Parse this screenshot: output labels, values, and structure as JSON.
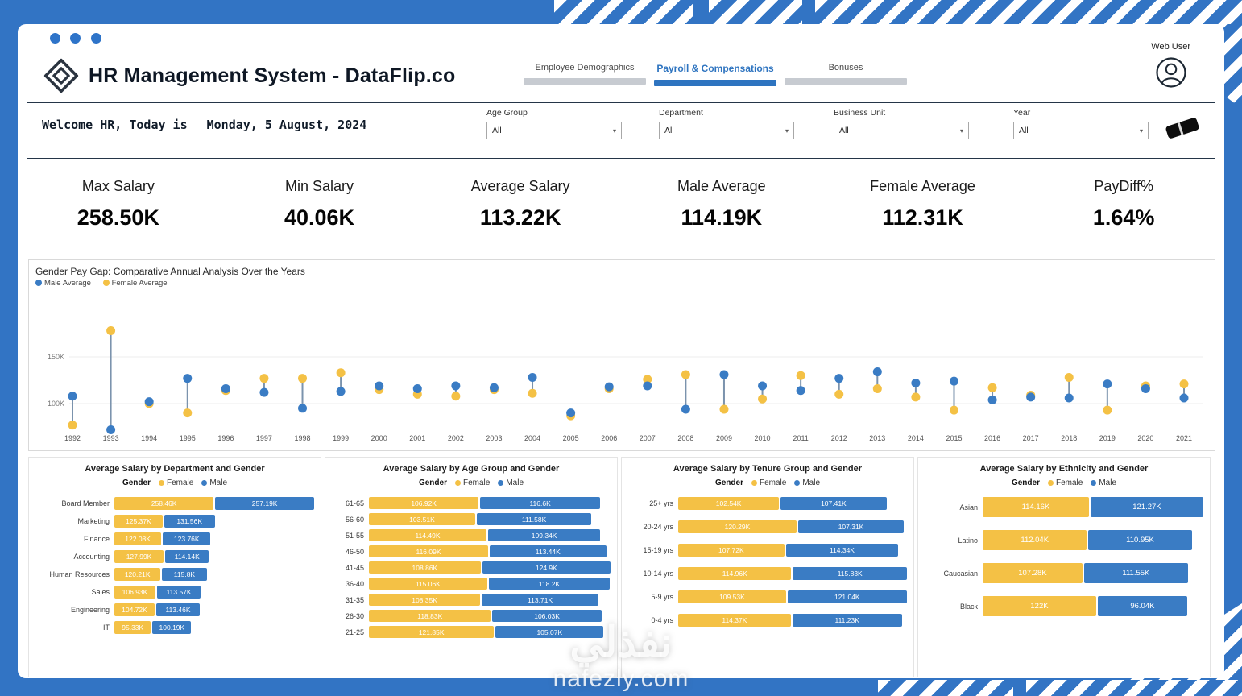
{
  "header": {
    "title": "HR Management System - DataFlip.co",
    "user_label": "Web User",
    "tabs": [
      {
        "label": "Employee Demographics",
        "active": false
      },
      {
        "label": "Payroll & Compensations",
        "active": true
      },
      {
        "label": "Bonuses",
        "active": false
      }
    ]
  },
  "welcome": {
    "prefix": "Welcome HR, Today is",
    "date": "Monday, 5 August, 2024"
  },
  "filters": [
    {
      "label": "Age Group",
      "value": "All"
    },
    {
      "label": "Department",
      "value": "All"
    },
    {
      "label": "Business Unit",
      "value": "All"
    },
    {
      "label": "Year",
      "value": "All"
    }
  ],
  "kpis": [
    {
      "label": "Max Salary",
      "value": "258.50K"
    },
    {
      "label": "Min Salary",
      "value": "40.06K"
    },
    {
      "label": "Average Salary",
      "value": "113.22K"
    },
    {
      "label": "Male Average",
      "value": "114.19K"
    },
    {
      "label": "Female Average",
      "value": "112.31K"
    },
    {
      "label": "PayDiff%",
      "value": "1.64%"
    }
  ],
  "colors": {
    "frame_blue": "#3274c4",
    "bar_blue": "#3a7cc4",
    "bar_yellow": "#f4c145",
    "connector": "#7b93ad"
  },
  "watermark": {
    "line1": "نفذلي",
    "line2": "nafezly.com"
  },
  "chart_data": [
    {
      "type": "dumbbell",
      "title": "Gender Pay Gap: Comparative Annual Analysis Over the Years",
      "x": [
        1992,
        1993,
        1994,
        1995,
        1996,
        1997,
        1998,
        1999,
        2000,
        2001,
        2002,
        2003,
        2004,
        2005,
        2006,
        2007,
        2008,
        2009,
        2010,
        2011,
        2012,
        2013,
        2014,
        2015,
        2016,
        2017,
        2018,
        2019,
        2020,
        2021
      ],
      "series": [
        {
          "name": "Male Average",
          "color": "#3a7cc4",
          "values": [
            108,
            72,
            102,
            127,
            116,
            112,
            95,
            113,
            119,
            116,
            119,
            117,
            128,
            90,
            118,
            119,
            94,
            131,
            119,
            114,
            127,
            134,
            122,
            124,
            104,
            107,
            106,
            121,
            116,
            106
          ]
        },
        {
          "name": "Female Average",
          "color": "#f4c145",
          "values": [
            77,
            178,
            100,
            90,
            114,
            127,
            127,
            133,
            115,
            110,
            108,
            115,
            111,
            87,
            116,
            126,
            131,
            94,
            105,
            130,
            110,
            116,
            107,
            93,
            117,
            109,
            128,
            93,
            119,
            121
          ]
        }
      ],
      "ylim": [
        60,
        190
      ],
      "yticks": [
        150,
        100
      ],
      "ytick_labels": [
        "150K",
        "100K"
      ],
      "unit": "K"
    },
    {
      "type": "bar",
      "title": "Average Salary by Department and Gender",
      "legend_title": "Gender",
      "categories": [
        "Board Member",
        "Marketing",
        "Finance",
        "Accounting",
        "Human Resources",
        "Sales",
        "Engineering",
        "IT"
      ],
      "female": {
        "name": "Female",
        "values": [
          258.46,
          125.37,
          122.08,
          127.99,
          120.21,
          106.93,
          104.72,
          95.33
        ],
        "labels": [
          "258.46K",
          "125.37K",
          "122.08K",
          "127.99K",
          "120.21K",
          "106.93K",
          "104.72K",
          "95.33K"
        ]
      },
      "male": {
        "name": "Male",
        "values": [
          257.19,
          131.56,
          123.76,
          114.14,
          115.8,
          113.57,
          113.46,
          100.19
        ],
        "labels": [
          "257.19K",
          "131.56K",
          "123.76K",
          "114.14K",
          "115.8K",
          "113.57K",
          "113.46K",
          "100.19K"
        ]
      }
    },
    {
      "type": "bar",
      "title": "Average Salary by Age Group and Gender",
      "legend_title": "Gender",
      "categories": [
        "61-65",
        "56-60",
        "51-55",
        "46-50",
        "41-45",
        "36-40",
        "31-35",
        "26-30",
        "21-25"
      ],
      "female": {
        "name": "Female",
        "values": [
          106.92,
          103.51,
          114.49,
          116.09,
          108.86,
          115.06,
          108.35,
          118.83,
          121.85
        ],
        "labels": [
          "106.92K",
          "103.51K",
          "114.49K",
          "116.09K",
          "108.86K",
          "115.06K",
          "108.35K",
          "118.83K",
          "121.85K"
        ]
      },
      "male": {
        "name": "Male",
        "values": [
          116.6,
          111.58,
          109.34,
          113.44,
          124.9,
          118.2,
          113.71,
          106.03,
          105.07
        ],
        "labels": [
          "116.6K",
          "111.58K",
          "109.34K",
          "113.44K",
          "124.9K",
          "118.2K",
          "113.71K",
          "106.03K",
          "105.07K"
        ]
      }
    },
    {
      "type": "bar",
      "title": "Average Salary by Tenure Group and Gender",
      "legend_title": "Gender",
      "categories": [
        "25+ yrs",
        "20-24 yrs",
        "15-19 yrs",
        "10-14 yrs",
        "5-9 yrs",
        "0-4 yrs"
      ],
      "female": {
        "name": "Female",
        "values": [
          102.54,
          120.29,
          107.72,
          114.96,
          109.53,
          114.37
        ],
        "labels": [
          "102.54K",
          "120.29K",
          "107.72K",
          "114.96K",
          "109.53K",
          "114.37K"
        ]
      },
      "male": {
        "name": "Male",
        "values": [
          107.41,
          107.31,
          114.34,
          115.83,
          121.04,
          111.23
        ],
        "labels": [
          "107.41K",
          "107.31K",
          "114.34K",
          "115.83K",
          "121.04K",
          "111.23K"
        ]
      }
    },
    {
      "type": "bar",
      "title": "Average Salary by Ethnicity and Gender",
      "legend_title": "Gender",
      "categories": [
        "Asian",
        "Latino",
        "Caucasian",
        "Black"
      ],
      "female": {
        "name": "Female",
        "values": [
          114.16,
          112.04,
          107.28,
          122
        ],
        "labels": [
          "114.16K",
          "112.04K",
          "107.28K",
          "122K"
        ]
      },
      "male": {
        "name": "Male",
        "values": [
          121.27,
          110.95,
          111.55,
          96.04
        ],
        "labels": [
          "121.27K",
          "110.95K",
          "111.55K",
          "96.04K"
        ]
      }
    }
  ]
}
